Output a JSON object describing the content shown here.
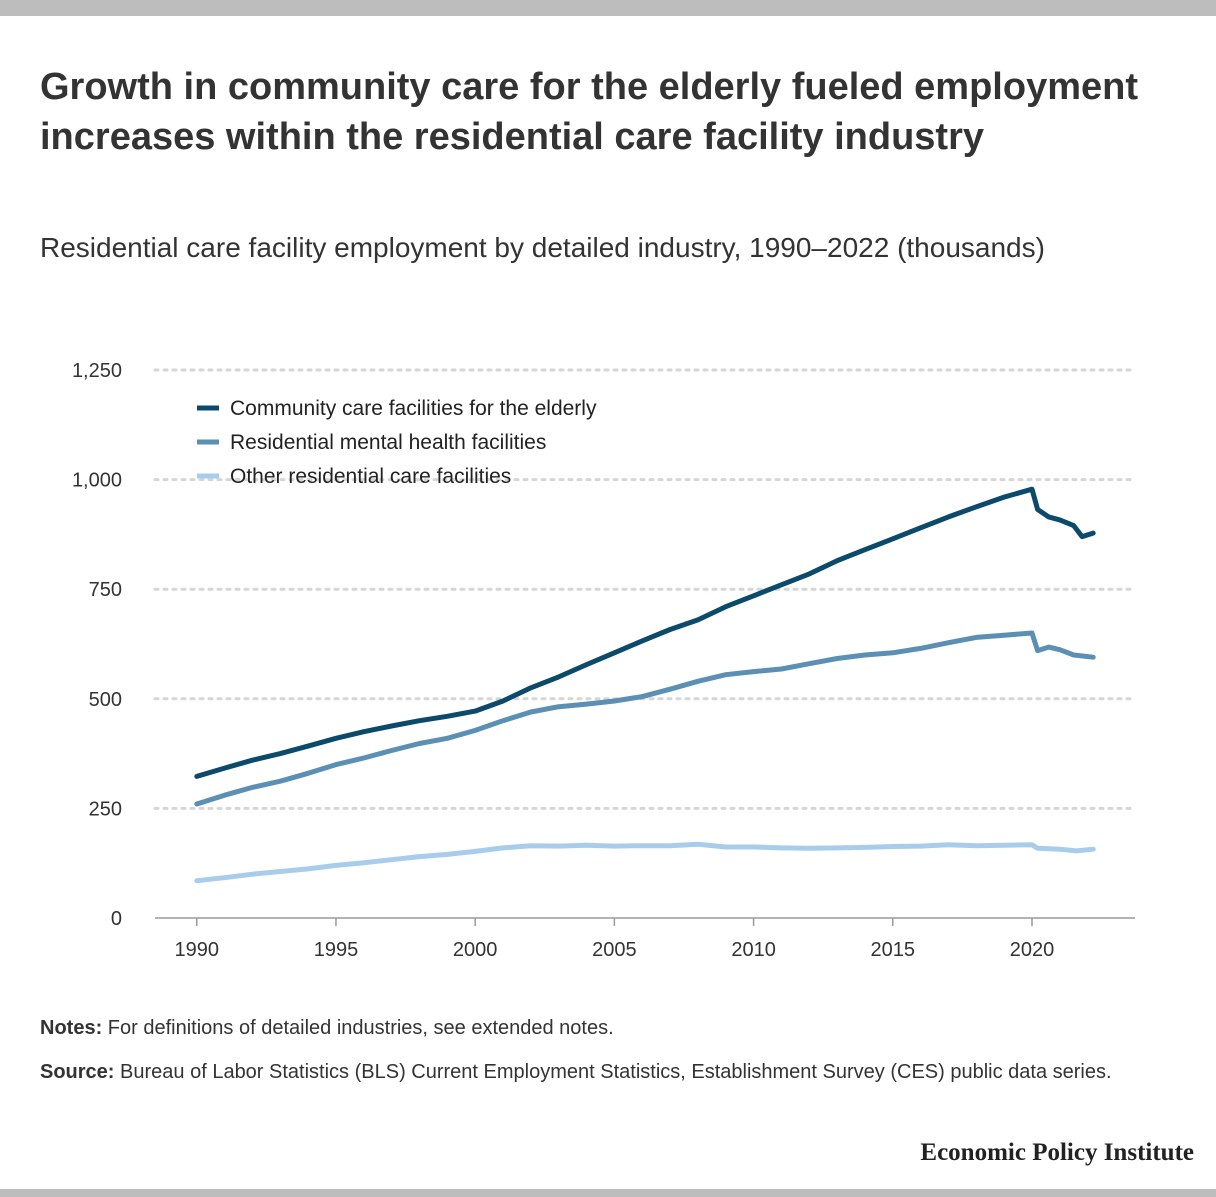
{
  "header": {
    "title": "Growth in community care for the elderly fueled employment increases within the residential care facility industry",
    "subtitle": "Residential care facility employment by detailed industry, 1990–2022 (thousands)"
  },
  "footer": {
    "notes_label": "Notes:",
    "notes_text": "For definitions of detailed industries, see extended notes.",
    "source_label": "Source:",
    "source_text": "Bureau of Labor Statistics (BLS) Current Employment Statistics, Establishment Survey (CES) public data series.",
    "brand": "Economic Policy Institute"
  },
  "colors": {
    "elderly": "#0b4a6b",
    "mental": "#5b8fb4",
    "other": "#a8cdec",
    "grid": "#d6d6d6",
    "axis": "#9a9a9a"
  },
  "chart_data": {
    "type": "line",
    "title": "Growth in community care for the elderly fueled employment increases within the residential care facility industry",
    "subtitle": "Residential care facility employment by detailed industry, 1990–2022 (thousands)",
    "xlabel": "",
    "ylabel": "",
    "xlim": [
      1988.5,
      2023.7
    ],
    "ylim": [
      0,
      1250
    ],
    "x_ticks": [
      1990,
      1995,
      2000,
      2005,
      2010,
      2015,
      2020
    ],
    "y_ticks": [
      0,
      250,
      500,
      750,
      1000,
      1250
    ],
    "y_tick_labels": [
      "0",
      "250",
      "500",
      "750",
      "1,000",
      "1,250"
    ],
    "grid": "horizontal dotted",
    "legend_position": "top-left",
    "series": [
      {
        "name": "Community care facilities for the elderly",
        "color": "#0b4a6b",
        "points": [
          [
            1990,
            323
          ],
          [
            1991,
            342
          ],
          [
            1992,
            360
          ],
          [
            1993,
            375
          ],
          [
            1994,
            392
          ],
          [
            1995,
            410
          ],
          [
            1996,
            425
          ],
          [
            1997,
            438
          ],
          [
            1998,
            450
          ],
          [
            1999,
            460
          ],
          [
            2000,
            472
          ],
          [
            2001,
            495
          ],
          [
            2002,
            525
          ],
          [
            2003,
            550
          ],
          [
            2004,
            578
          ],
          [
            2005,
            605
          ],
          [
            2006,
            632
          ],
          [
            2007,
            658
          ],
          [
            2008,
            680
          ],
          [
            2009,
            710
          ],
          [
            2010,
            735
          ],
          [
            2011,
            760
          ],
          [
            2012,
            785
          ],
          [
            2013,
            815
          ],
          [
            2014,
            840
          ],
          [
            2015,
            865
          ],
          [
            2016,
            890
          ],
          [
            2017,
            915
          ],
          [
            2018,
            938
          ],
          [
            2019,
            960
          ],
          [
            2020.0,
            978
          ],
          [
            2020.2,
            932
          ],
          [
            2020.6,
            915
          ],
          [
            2021.0,
            908
          ],
          [
            2021.5,
            895
          ],
          [
            2021.8,
            870
          ],
          [
            2022.2,
            878
          ]
        ]
      },
      {
        "name": "Residential mental health facilities",
        "color": "#5b8fb4",
        "points": [
          [
            1990,
            260
          ],
          [
            1991,
            280
          ],
          [
            1992,
            298
          ],
          [
            1993,
            312
          ],
          [
            1994,
            330
          ],
          [
            1995,
            350
          ],
          [
            1996,
            365
          ],
          [
            1997,
            382
          ],
          [
            1998,
            398
          ],
          [
            1999,
            410
          ],
          [
            2000,
            428
          ],
          [
            2001,
            450
          ],
          [
            2002,
            470
          ],
          [
            2003,
            482
          ],
          [
            2004,
            488
          ],
          [
            2005,
            495
          ],
          [
            2006,
            505
          ],
          [
            2007,
            522
          ],
          [
            2008,
            540
          ],
          [
            2009,
            555
          ],
          [
            2010,
            562
          ],
          [
            2011,
            568
          ],
          [
            2012,
            580
          ],
          [
            2013,
            592
          ],
          [
            2014,
            600
          ],
          [
            2015,
            605
          ],
          [
            2016,
            615
          ],
          [
            2017,
            628
          ],
          [
            2018,
            640
          ],
          [
            2019,
            645
          ],
          [
            2020.0,
            650
          ],
          [
            2020.2,
            610
          ],
          [
            2020.6,
            618
          ],
          [
            2021.0,
            612
          ],
          [
            2021.5,
            600
          ],
          [
            2022.2,
            595
          ]
        ]
      },
      {
        "name": "Other residential care facilities",
        "color": "#a8cdec",
        "points": [
          [
            1990,
            85
          ],
          [
            1991,
            92
          ],
          [
            1992,
            100
          ],
          [
            1993,
            106
          ],
          [
            1994,
            112
          ],
          [
            1995,
            120
          ],
          [
            1996,
            126
          ],
          [
            1997,
            133
          ],
          [
            1998,
            140
          ],
          [
            1999,
            145
          ],
          [
            2000,
            152
          ],
          [
            2001,
            160
          ],
          [
            2002,
            165
          ],
          [
            2003,
            164
          ],
          [
            2004,
            166
          ],
          [
            2005,
            164
          ],
          [
            2006,
            165
          ],
          [
            2007,
            165
          ],
          [
            2008,
            168
          ],
          [
            2009,
            162
          ],
          [
            2010,
            162
          ],
          [
            2011,
            160
          ],
          [
            2012,
            159
          ],
          [
            2013,
            160
          ],
          [
            2014,
            161
          ],
          [
            2015,
            163
          ],
          [
            2016,
            164
          ],
          [
            2017,
            167
          ],
          [
            2018,
            165
          ],
          [
            2019,
            166
          ],
          [
            2020.0,
            167
          ],
          [
            2020.2,
            159
          ],
          [
            2021.0,
            157
          ],
          [
            2021.6,
            153
          ],
          [
            2022.2,
            157
          ]
        ]
      }
    ]
  }
}
